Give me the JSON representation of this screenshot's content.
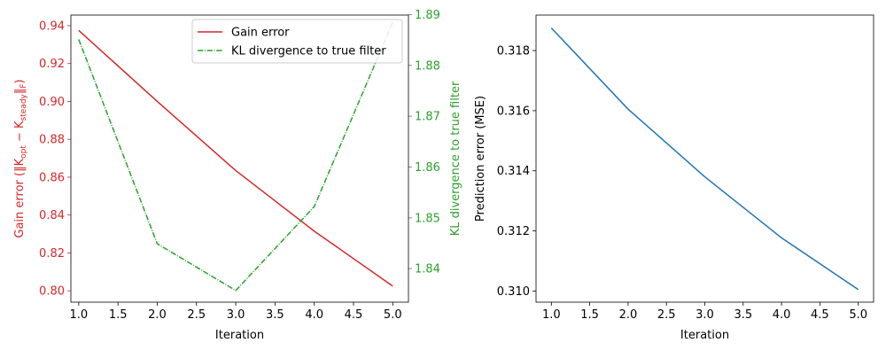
{
  "chart_data": [
    {
      "type": "line",
      "xlabel": "Iteration",
      "x": [
        1,
        2,
        3,
        4,
        5
      ],
      "xlim": [
        0.9,
        5.2
      ],
      "xticks": [
        1.0,
        1.5,
        2.0,
        2.5,
        3.0,
        3.5,
        4.0,
        4.5,
        5.0
      ],
      "xtick_labels": [
        "1.0",
        "1.5",
        "2.0",
        "2.5",
        "3.0",
        "3.5",
        "4.0",
        "4.5",
        "5.0"
      ],
      "ylabel_left": "Gain error (‖K",
      "ylabel_left_sub1": "opt",
      "ylabel_left_mid": " − K",
      "ylabel_left_sub2": "steady",
      "ylabel_left_end": "‖",
      "ylabel_left_sub3": "F",
      "ylabel_left_close": ")",
      "ylim_left": [
        0.794,
        0.9456
      ],
      "yticks_left": [
        0.8,
        0.82,
        0.84,
        0.86,
        0.88,
        0.9,
        0.92,
        0.94
      ],
      "ytick_labels_left": [
        "0.80",
        "0.82",
        "0.84",
        "0.86",
        "0.88",
        "0.90",
        "0.92",
        "0.94"
      ],
      "ylabel_right": "KL divergence to true filter",
      "ylim_right": [
        1.8334,
        1.8899
      ],
      "yticks_right": [
        1.84,
        1.85,
        1.86,
        1.87,
        1.88,
        1.89
      ],
      "ytick_labels_right": [
        "1.84",
        "1.85",
        "1.86",
        "1.87",
        "1.88",
        "1.89"
      ],
      "legend_position": "top-right",
      "series": [
        {
          "name": "Gain error",
          "axis": "left",
          "color": "#d62728",
          "style": "solid",
          "values": [
            0.9375,
            0.9,
            0.8635,
            0.8315,
            0.8025
          ]
        },
        {
          "name": "KL divergence to true filter",
          "axis": "right",
          "color": "#2ca02c",
          "style": "dashdot",
          "values": [
            1.8851,
            1.8449,
            1.8357,
            1.8522,
            1.8885
          ]
        }
      ]
    },
    {
      "type": "line",
      "xlabel": "Iteration",
      "x": [
        1,
        2,
        3,
        4,
        5
      ],
      "xlim": [
        0.8,
        5.2
      ],
      "xticks": [
        1.0,
        1.5,
        2.0,
        2.5,
        3.0,
        3.5,
        4.0,
        4.5,
        5.0
      ],
      "xtick_labels": [
        "1.0",
        "1.5",
        "2.0",
        "2.5",
        "3.0",
        "3.5",
        "4.0",
        "4.5",
        "5.0"
      ],
      "ylabel": "Prediction error (MSE)",
      "ylim": [
        0.30963,
        0.31918
      ],
      "yticks": [
        0.31,
        0.312,
        0.314,
        0.316,
        0.318
      ],
      "ytick_labels": [
        "0.310",
        "0.312",
        "0.314",
        "0.316",
        "0.318"
      ],
      "series": [
        {
          "color": "#1f77b4",
          "style": "solid",
          "values": [
            0.31875,
            0.31605,
            0.3138,
            0.31177,
            0.31005
          ]
        }
      ]
    }
  ]
}
